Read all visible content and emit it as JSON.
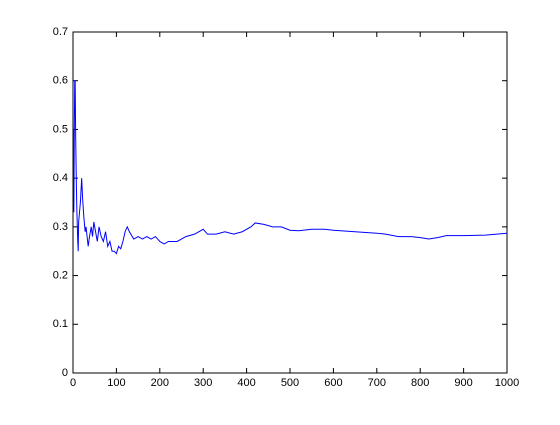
{
  "chart_data": {
    "type": "line",
    "x": [
      1,
      2,
      3,
      4,
      5,
      6,
      7,
      8,
      9,
      10,
      11,
      12,
      13,
      15,
      17,
      20,
      22,
      25,
      28,
      30,
      35,
      38,
      42,
      45,
      48,
      52,
      56,
      60,
      65,
      70,
      75,
      80,
      85,
      90,
      95,
      100,
      105,
      110,
      115,
      120,
      125,
      130,
      140,
      150,
      160,
      170,
      180,
      190,
      200,
      210,
      220,
      240,
      260,
      280,
      300,
      310,
      330,
      350,
      370,
      390,
      410,
      420,
      440,
      460,
      480,
      500,
      520,
      550,
      580,
      600,
      650,
      700,
      720,
      750,
      780,
      800,
      820,
      840,
      860,
      900,
      950,
      1000
    ],
    "series": [
      {
        "color": "#0000ff",
        "values": [
          0.5,
          0.33,
          0.5,
          0.6,
          0.6,
          0.5,
          0.43,
          0.375,
          0.33,
          0.3,
          0.27,
          0.25,
          0.31,
          0.33,
          0.35,
          0.4,
          0.36,
          0.32,
          0.29,
          0.3,
          0.26,
          0.28,
          0.3,
          0.28,
          0.31,
          0.29,
          0.27,
          0.3,
          0.28,
          0.27,
          0.29,
          0.26,
          0.27,
          0.25,
          0.25,
          0.245,
          0.26,
          0.255,
          0.27,
          0.29,
          0.3,
          0.29,
          0.275,
          0.28,
          0.275,
          0.28,
          0.275,
          0.28,
          0.27,
          0.265,
          0.27,
          0.27,
          0.28,
          0.285,
          0.295,
          0.285,
          0.285,
          0.29,
          0.285,
          0.29,
          0.3,
          0.308,
          0.305,
          0.3,
          0.3,
          0.293,
          0.292,
          0.295,
          0.295,
          0.293,
          0.29,
          0.287,
          0.285,
          0.28,
          0.28,
          0.278,
          0.275,
          0.278,
          0.282,
          0.282,
          0.283,
          0.287
        ]
      }
    ],
    "xlim": [
      0,
      1000
    ],
    "xticks": [
      0,
      100,
      200,
      300,
      400,
      500,
      600,
      700,
      800,
      900,
      1000
    ],
    "ylim": [
      0,
      0.7
    ],
    "yticks": [
      0,
      0.1,
      0.2,
      0.3,
      0.4,
      0.5,
      0.6,
      0.7
    ]
  }
}
